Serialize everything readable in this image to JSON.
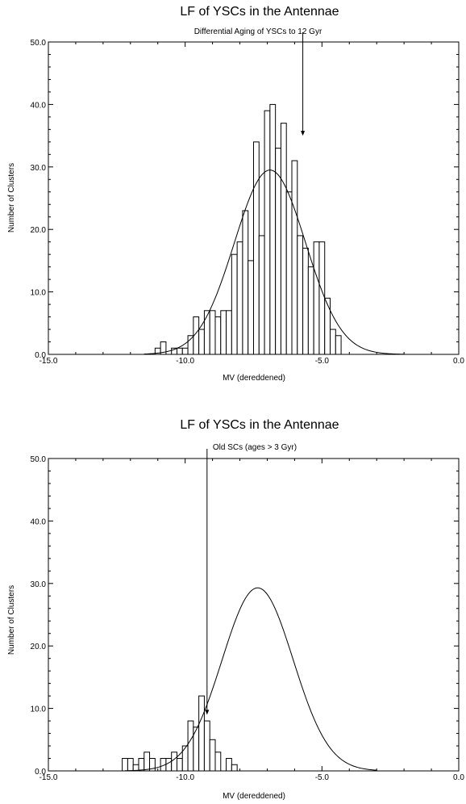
{
  "chart_data": [
    {
      "type": "bar",
      "title": "LF of YSCs in the Antennae",
      "subtitle": "Differential Aging of YSCs  to 12 Gyr",
      "xlabel": "MV (dereddened)",
      "ylabel": "Number of Clusters",
      "xlim": [
        -15.0,
        0.0
      ],
      "ylim": [
        0.0,
        50.0
      ],
      "xticks": [
        "-15.0",
        "-10.0",
        "-5.0",
        "0.0"
      ],
      "yticks": [
        "0.0",
        "10.0",
        "20.0",
        "30.0",
        "40.0",
        "50.0"
      ],
      "bin_width": 0.2,
      "bins": [
        {
          "x": -11.4,
          "y": 0
        },
        {
          "x": -11.2,
          "y": 0
        },
        {
          "x": -11.0,
          "y": 1
        },
        {
          "x": -10.8,
          "y": 2
        },
        {
          "x": -10.6,
          "y": 0
        },
        {
          "x": -10.4,
          "y": 1
        },
        {
          "x": -10.2,
          "y": 1
        },
        {
          "x": -10.0,
          "y": 1
        },
        {
          "x": -9.8,
          "y": 3
        },
        {
          "x": -9.6,
          "y": 6
        },
        {
          "x": -9.4,
          "y": 4
        },
        {
          "x": -9.2,
          "y": 7
        },
        {
          "x": -9.0,
          "y": 7
        },
        {
          "x": -8.8,
          "y": 6
        },
        {
          "x": -8.6,
          "y": 7
        },
        {
          "x": -8.4,
          "y": 7
        },
        {
          "x": -8.2,
          "y": 16
        },
        {
          "x": -8.0,
          "y": 18
        },
        {
          "x": -7.8,
          "y": 23
        },
        {
          "x": -7.6,
          "y": 15
        },
        {
          "x": -7.4,
          "y": 34
        },
        {
          "x": -7.2,
          "y": 19
        },
        {
          "x": -7.0,
          "y": 39
        },
        {
          "x": -6.8,
          "y": 40
        },
        {
          "x": -6.6,
          "y": 33
        },
        {
          "x": -6.4,
          "y": 37
        },
        {
          "x": -6.2,
          "y": 26
        },
        {
          "x": -6.0,
          "y": 31
        },
        {
          "x": -5.8,
          "y": 19
        },
        {
          "x": -5.6,
          "y": 17
        },
        {
          "x": -5.4,
          "y": 14
        },
        {
          "x": -5.2,
          "y": 18
        },
        {
          "x": -5.0,
          "y": 18
        },
        {
          "x": -4.8,
          "y": 9
        },
        {
          "x": -4.6,
          "y": 4
        },
        {
          "x": -4.4,
          "y": 3
        }
      ],
      "fit": {
        "type": "gaussian",
        "peak": 29.5,
        "mean": -6.9,
        "sigma": 1.3,
        "x_range": [
          -11.5,
          -2.0
        ]
      },
      "arrow": {
        "x": -5.7,
        "y_from": 50.0,
        "y_to": 35.0
      }
    },
    {
      "type": "bar",
      "title": "LF of YSCs in the Antennae",
      "subtitle": "Old SCs (ages > 3 Gyr)",
      "xlabel": "MV (dereddened)",
      "ylabel": "Number of Clusters",
      "xlim": [
        -15.0,
        0.0
      ],
      "ylim": [
        0.0,
        50.0
      ],
      "xticks": [
        "-15.0",
        "-10.0",
        "-5.0",
        "0.0"
      ],
      "yticks": [
        "0.0",
        "10.0",
        "20.0",
        "30.0",
        "40.0",
        "50.0"
      ],
      "bin_width": 0.2,
      "bins": [
        {
          "x": -12.2,
          "y": 2
        },
        {
          "x": -12.0,
          "y": 2
        },
        {
          "x": -11.8,
          "y": 1
        },
        {
          "x": -11.6,
          "y": 2
        },
        {
          "x": -11.4,
          "y": 3
        },
        {
          "x": -11.2,
          "y": 2
        },
        {
          "x": -11.0,
          "y": 0
        },
        {
          "x": -10.8,
          "y": 2
        },
        {
          "x": -10.6,
          "y": 2
        },
        {
          "x": -10.4,
          "y": 3
        },
        {
          "x": -10.2,
          "y": 2
        },
        {
          "x": -10.0,
          "y": 4
        },
        {
          "x": -9.8,
          "y": 8
        },
        {
          "x": -9.6,
          "y": 7
        },
        {
          "x": -9.4,
          "y": 12
        },
        {
          "x": -9.2,
          "y": 8
        },
        {
          "x": -9.0,
          "y": 5
        },
        {
          "x": -8.8,
          "y": 3
        },
        {
          "x": -8.6,
          "y": 0
        },
        {
          "x": -8.4,
          "y": 2
        },
        {
          "x": -8.2,
          "y": 1
        }
      ],
      "fit": {
        "type": "gaussian",
        "peak": 29.3,
        "mean": -7.35,
        "sigma": 1.3,
        "x_range": [
          -12.2,
          -3.0
        ]
      },
      "arrow": {
        "x": -9.2,
        "y_from": 50.0,
        "y_to": 9.0
      }
    }
  ]
}
